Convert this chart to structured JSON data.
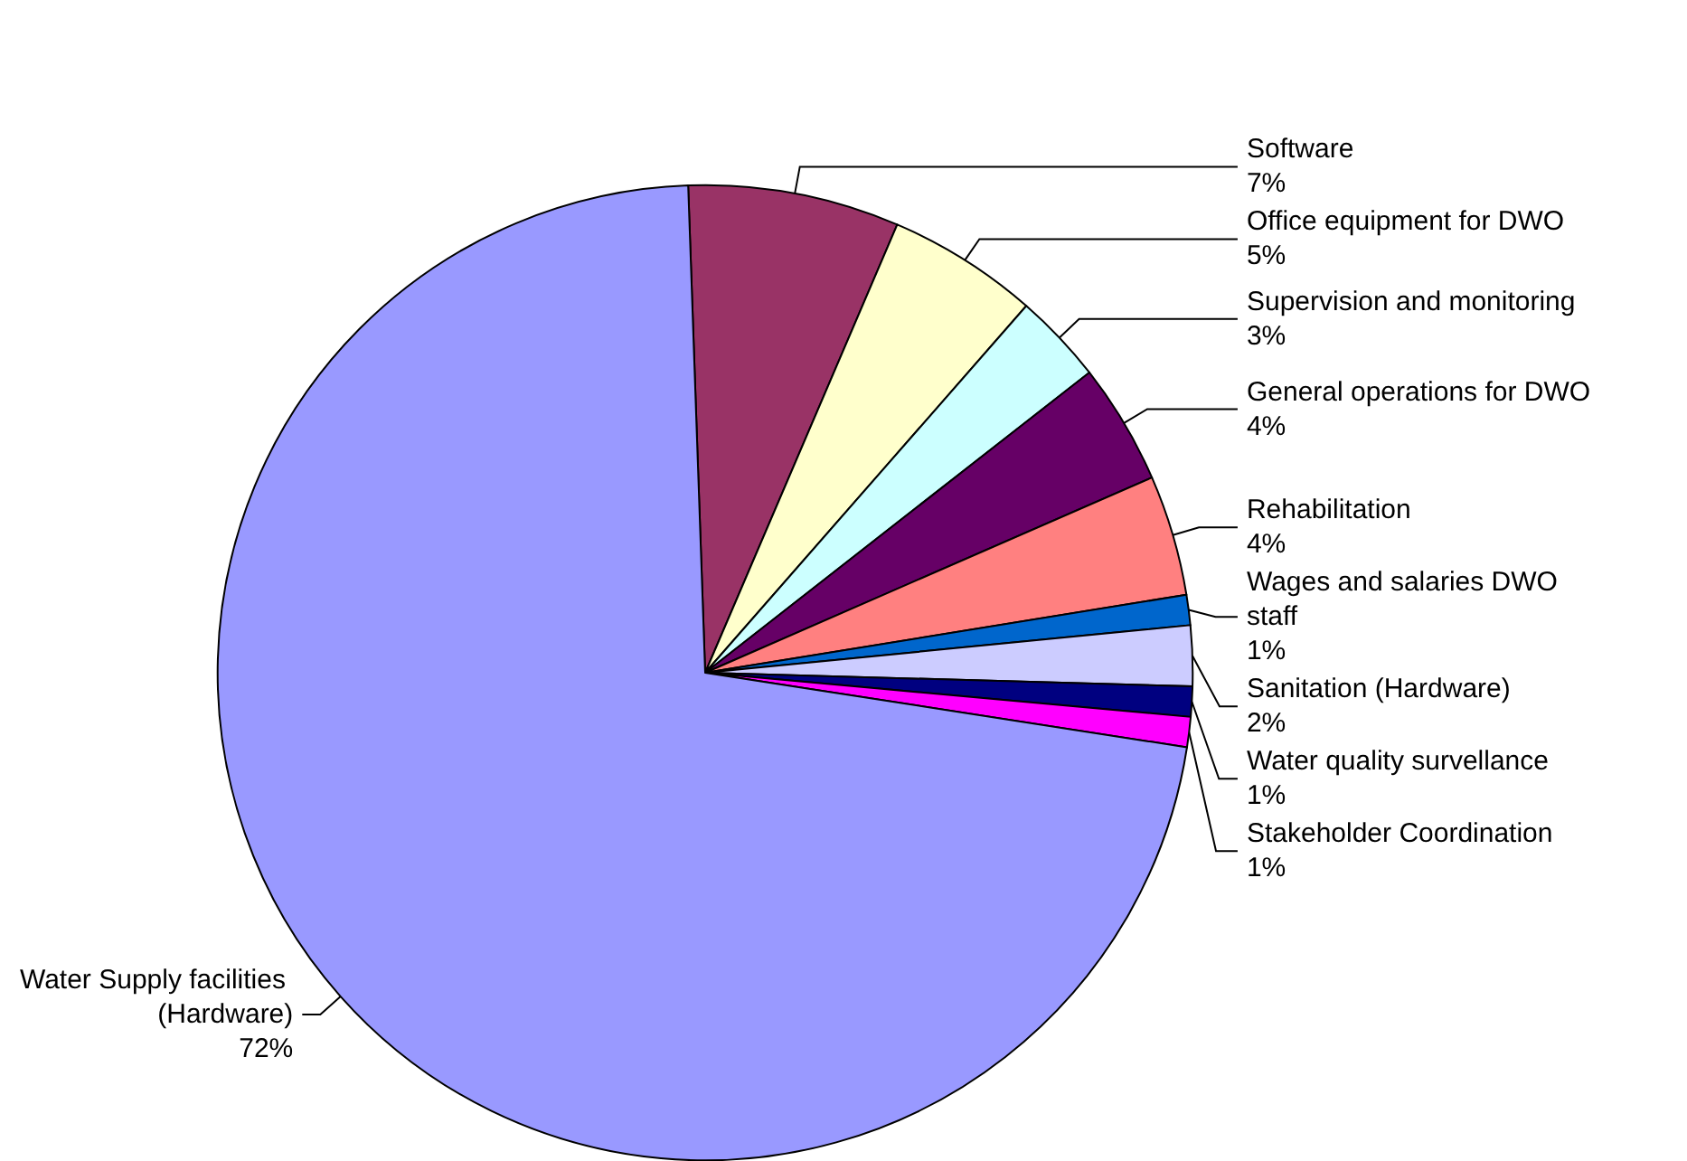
{
  "chart_data": {
    "type": "pie",
    "categories": [
      "Software",
      "Office equipment for DWO",
      "Supervision and monitoring",
      "General operations for DWO",
      "Rehabilitation",
      "Wages and salaries DWO staff",
      "Sanitation (Hardware)",
      "Water quality survellance",
      "Stakeholder Coordination",
      "Water Supply facilities (Hardware)"
    ],
    "values": [
      7,
      5,
      3,
      4,
      4,
      1,
      2,
      1,
      1,
      72
    ],
    "value_labels": [
      "7%",
      "5%",
      "3%",
      "4%",
      "4%",
      "1%",
      "2%",
      "1%",
      "1%",
      "72%"
    ],
    "colors": [
      "#993366",
      "#ffffcc",
      "#ccffff",
      "#660066",
      "#ff8080",
      "#0066cc",
      "#ccccff",
      "#000080",
      "#ff00ff",
      "#9999ff"
    ]
  }
}
